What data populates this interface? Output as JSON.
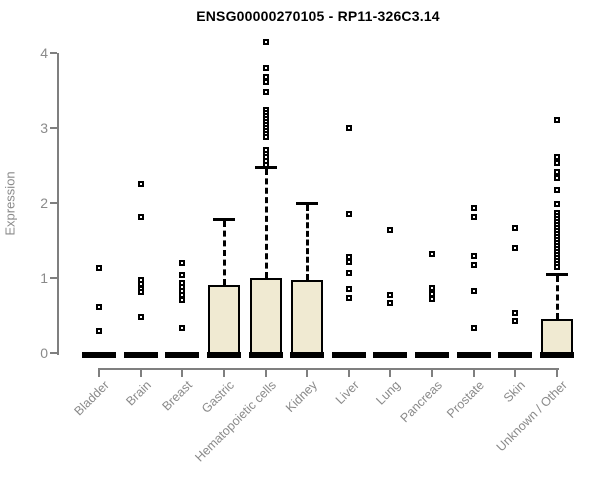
{
  "window": {
    "background": "#ffffff"
  },
  "chart_data": {
    "type": "boxplot",
    "title": "ENSG00000270105 - RP11-326C3.14",
    "xlabel": "",
    "ylabel": "Expression",
    "ylim": [
      0,
      4
    ],
    "yticks": [
      0,
      1,
      2,
      3,
      4
    ],
    "grid": "off",
    "legend": "none",
    "colors": {
      "box_fill": "#f0ead2",
      "box_border": "#000000",
      "median": "#000000",
      "axis": "#7f7f7f",
      "tick_label": "#8a8a8a",
      "title": "#000000"
    },
    "categories": [
      "Bladder",
      "Brain",
      "Breast",
      "Gastric",
      "Hematopoietic cells",
      "Kidney",
      "Liver",
      "Lung",
      "Pancreas",
      "Prostate",
      "Skin",
      "Unknown / Other"
    ],
    "series": [
      {
        "category": "Bladder",
        "q1": 0,
        "median": 0,
        "q3": 0,
        "whisker_low": 0,
        "whisker_high": 0,
        "outliers": [
          1.13,
          0.62,
          0.29
        ]
      },
      {
        "category": "Brain",
        "q1": 0,
        "median": 0,
        "q3": 0,
        "whisker_low": 0,
        "whisker_high": 0,
        "outliers": [
          2.25,
          1.82,
          0.97,
          0.92,
          0.86,
          0.81,
          0.48
        ]
      },
      {
        "category": "Breast",
        "q1": 0,
        "median": 0,
        "q3": 0,
        "whisker_low": 0,
        "whisker_high": 0,
        "outliers": [
          1.2,
          1.04,
          0.93,
          0.88,
          0.83,
          0.77,
          0.71,
          0.33
        ]
      },
      {
        "category": "Gastric",
        "q1": 0,
        "median": 0,
        "q3": 0.91,
        "whisker_low": 0,
        "whisker_high": 1.79,
        "outliers": []
      },
      {
        "category": "Hematopoietic cells",
        "q1": 0,
        "median": 0,
        "q3": 1.0,
        "whisker_low": 0,
        "whisker_high": 2.48,
        "outliers": [
          4.15,
          3.8,
          3.68,
          3.61,
          3.48,
          3.24,
          3.2,
          3.16,
          3.12,
          3.08,
          3.04,
          3.0,
          2.96,
          2.92,
          2.88,
          2.71,
          2.66,
          2.61,
          2.56,
          2.51
        ]
      },
      {
        "category": "Kidney",
        "q1": 0,
        "median": 0,
        "q3": 0.97,
        "whisker_low": 0,
        "whisker_high": 2.0,
        "outliers": []
      },
      {
        "category": "Liver",
        "q1": 0,
        "median": 0,
        "q3": 0,
        "whisker_low": 0,
        "whisker_high": 0,
        "outliers": [
          3.0,
          1.85,
          1.28,
          1.22,
          1.07,
          0.85,
          0.73
        ]
      },
      {
        "category": "Lung",
        "q1": 0,
        "median": 0,
        "q3": 0,
        "whisker_low": 0,
        "whisker_high": 0,
        "outliers": [
          1.64,
          0.77,
          0.67
        ]
      },
      {
        "category": "Pancreas",
        "q1": 0,
        "median": 0,
        "q3": 0,
        "whisker_low": 0,
        "whisker_high": 0,
        "outliers": [
          1.32,
          0.87,
          0.79,
          0.72
        ]
      },
      {
        "category": "Prostate",
        "q1": 0,
        "median": 0,
        "q3": 0,
        "whisker_low": 0,
        "whisker_high": 0,
        "outliers": [
          1.93,
          1.81,
          1.29,
          1.17,
          0.83,
          0.33
        ]
      },
      {
        "category": "Skin",
        "q1": 0,
        "median": 0,
        "q3": 0,
        "whisker_low": 0,
        "whisker_high": 0,
        "outliers": [
          1.67,
          1.4,
          0.53,
          0.43
        ]
      },
      {
        "category": "Unknown / Other",
        "q1": 0,
        "median": 0,
        "q3": 0.45,
        "whisker_low": 0,
        "whisker_high": 1.05,
        "outliers": [
          3.11,
          2.61,
          2.53,
          2.41,
          2.33,
          2.17,
          1.99,
          1.87,
          1.83,
          1.79,
          1.75,
          1.71,
          1.67,
          1.63,
          1.59,
          1.55,
          1.51,
          1.47,
          1.43,
          1.39,
          1.35,
          1.31,
          1.27,
          1.23,
          1.19,
          1.15
        ]
      }
    ]
  }
}
